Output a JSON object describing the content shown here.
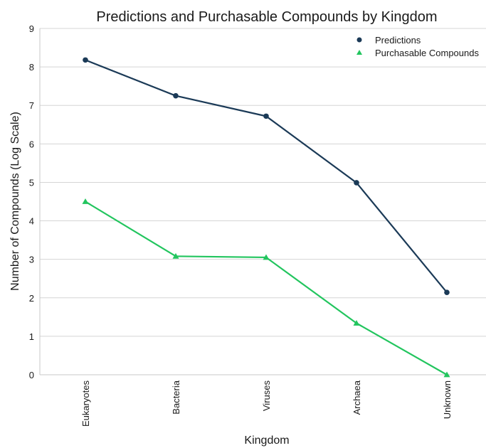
{
  "chart_data": {
    "type": "line",
    "title": "Predictions and Purchasable Compounds by Kingdom",
    "xlabel": "Kingdom",
    "ylabel": "Number of Compounds (Log Scale)",
    "categories": [
      "Eukaryotes",
      "Bacteria",
      "Viruses",
      "Archaea",
      "Unknown"
    ],
    "ylim": [
      0,
      9
    ],
    "yticks": [
      "0",
      "1",
      "2",
      "3",
      "4",
      "5",
      "6",
      "7",
      "8",
      "9"
    ],
    "grid": true,
    "legend_position": "top-right",
    "series": [
      {
        "name": "Predictions",
        "values": [
          8.18,
          7.25,
          6.72,
          4.99,
          2.14
        ],
        "color": "#1b3a57",
        "marker": "circle"
      },
      {
        "name": "Purchasable Compounds",
        "values": [
          4.5,
          3.08,
          3.05,
          1.34,
          0.0
        ],
        "color": "#22c55e",
        "marker": "triangle"
      }
    ]
  }
}
